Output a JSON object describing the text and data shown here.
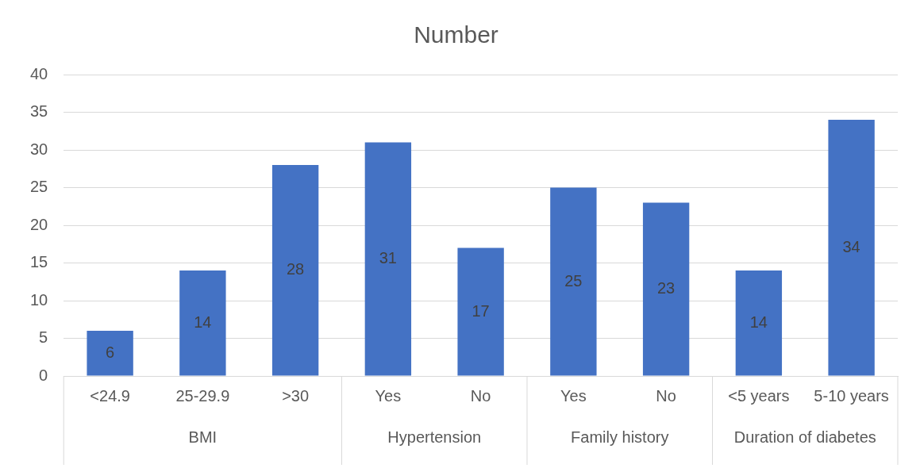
{
  "chart_data": {
    "type": "bar",
    "title": "Number",
    "categories": [
      "<24.9",
      "25-29.9",
      ">30",
      "Yes",
      "No",
      "Yes",
      "No",
      "<5 years",
      "5-10 years"
    ],
    "values": [
      6,
      14,
      28,
      31,
      17,
      25,
      23,
      14,
      34
    ],
    "color": "#4472c4",
    "ylim": [
      0,
      40
    ],
    "yticks": [
      0,
      5,
      10,
      15,
      20,
      25,
      30,
      35,
      40
    ],
    "grid": "y",
    "legend": false,
    "data_labels": true,
    "annotations": [
      "BMI",
      "Hypertension",
      "Family history",
      "Duration of diabetes"
    ]
  }
}
